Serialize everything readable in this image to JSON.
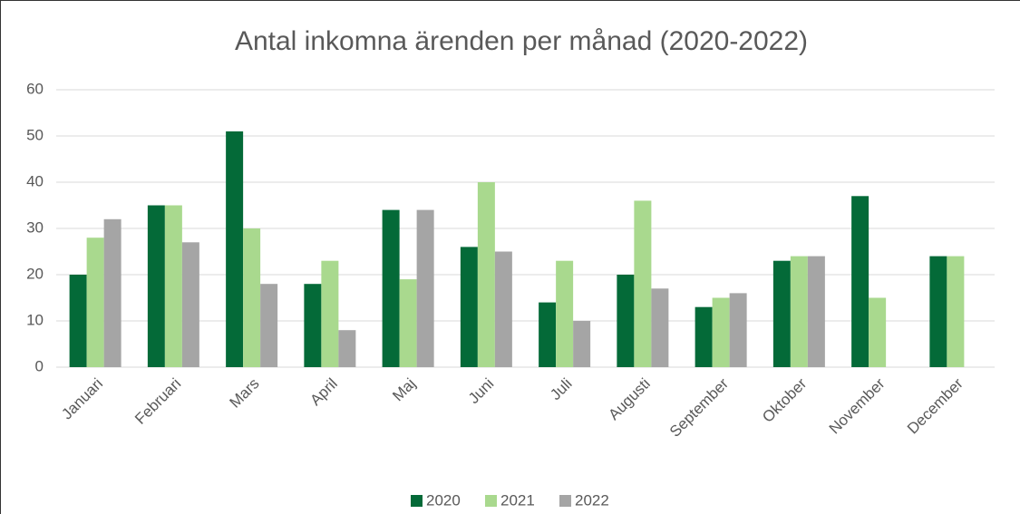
{
  "chart_data": {
    "type": "bar",
    "title": "Antal inkomna ärenden per månad (2020-2022)",
    "categories": [
      "Januari",
      "Februari",
      "Mars",
      "April",
      "Maj",
      "Juni",
      "Juli",
      "Augusti",
      "September",
      "Oktober",
      "November",
      "December"
    ],
    "series": [
      {
        "name": "2020",
        "color": "#046a38",
        "values": [
          20,
          35,
          51,
          18,
          34,
          26,
          14,
          20,
          13,
          23,
          37,
          24
        ]
      },
      {
        "name": "2021",
        "color": "#a9d98e",
        "values": [
          28,
          35,
          30,
          23,
          19,
          40,
          23,
          36,
          15,
          24,
          15,
          24
        ]
      },
      {
        "name": "2022",
        "color": "#a5a5a5",
        "values": [
          32,
          27,
          18,
          8,
          34,
          25,
          10,
          17,
          16,
          24,
          null,
          null
        ]
      }
    ],
    "ylim": [
      0,
      60
    ],
    "yticks": [
      0,
      10,
      20,
      30,
      40,
      50,
      60
    ],
    "grid": true,
    "legend": "bottom"
  }
}
